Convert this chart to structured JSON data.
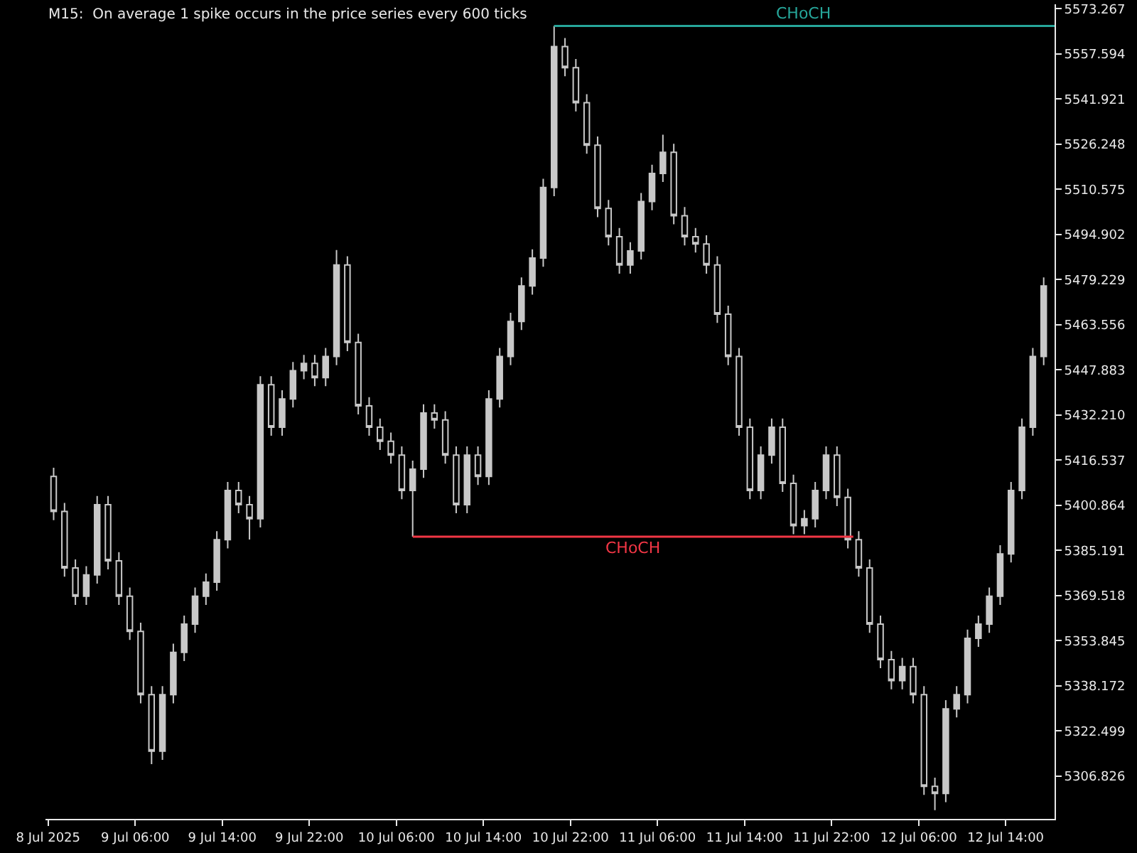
{
  "chart_data": {
    "type": "candlestick",
    "title": "M15:  On average 1 spike occurs in the price series every 600 ticks",
    "color": "#c8c8c8",
    "x": [
      "2025-07-08T22:30",
      "2025-07-08T23:30",
      "2025-07-09T00:30",
      "2025-07-09T01:30",
      "2025-07-09T02:30",
      "2025-07-09T03:30",
      "2025-07-09T04:30",
      "2025-07-09T05:30",
      "2025-07-09T06:30",
      "2025-07-09T07:30",
      "2025-07-09T08:30",
      "2025-07-09T09:30",
      "2025-07-09T10:30",
      "2025-07-09T11:30",
      "2025-07-09T12:30",
      "2025-07-09T13:30",
      "2025-07-09T14:30",
      "2025-07-09T15:30",
      "2025-07-09T16:30",
      "2025-07-09T17:30",
      "2025-07-09T18:30",
      "2025-07-09T19:30",
      "2025-07-09T20:30",
      "2025-07-09T21:30",
      "2025-07-09T22:30",
      "2025-07-09T23:30",
      "2025-07-10T00:30",
      "2025-07-10T01:30",
      "2025-07-10T02:30",
      "2025-07-10T03:30",
      "2025-07-10T04:30",
      "2025-07-10T05:30",
      "2025-07-10T06:30",
      "2025-07-10T07:30",
      "2025-07-10T08:30",
      "2025-07-10T09:30",
      "2025-07-10T10:30",
      "2025-07-10T11:30",
      "2025-07-10T12:30",
      "2025-07-10T13:30",
      "2025-07-10T14:30",
      "2025-07-10T15:30",
      "2025-07-10T16:30",
      "2025-07-10T17:30",
      "2025-07-10T18:30",
      "2025-07-10T19:30",
      "2025-07-10T20:30",
      "2025-07-10T21:30",
      "2025-07-10T22:30",
      "2025-07-10T23:30",
      "2025-07-11T00:30",
      "2025-07-11T01:30",
      "2025-07-11T02:30",
      "2025-07-11T03:30",
      "2025-07-11T04:30",
      "2025-07-11T05:30",
      "2025-07-11T06:30",
      "2025-07-11T07:30",
      "2025-07-11T08:30",
      "2025-07-11T09:30",
      "2025-07-11T10:30",
      "2025-07-11T11:30",
      "2025-07-11T12:30",
      "2025-07-11T13:30",
      "2025-07-11T14:30",
      "2025-07-11T15:30",
      "2025-07-11T16:30",
      "2025-07-11T17:30",
      "2025-07-11T18:30",
      "2025-07-11T19:30",
      "2025-07-11T20:30",
      "2025-07-11T21:30",
      "2025-07-11T22:30",
      "2025-07-11T23:30",
      "2025-07-12T00:30",
      "2025-07-12T01:30",
      "2025-07-12T02:30",
      "2025-07-12T03:30",
      "2025-07-12T04:30",
      "2025-07-12T05:30",
      "2025-07-12T06:30",
      "2025-07-12T07:30",
      "2025-07-12T08:30",
      "2025-07-12T09:30",
      "2025-07-12T10:30",
      "2025-07-12T11:30",
      "2025-07-12T12:30",
      "2025-07-12T13:30",
      "2025-07-12T14:30",
      "2025-07-12T15:30",
      "2025-07-12T16:30",
      "2025-07-12T17:30"
    ],
    "ohlc": [
      [
        5410.9,
        5413.9,
        5395.7,
        5398.7
      ],
      [
        5398.7,
        5401.7,
        5376.1,
        5379.1
      ],
      [
        5379.1,
        5382.1,
        5366.3,
        5369.3
      ],
      [
        5369.3,
        5379.7,
        5366.3,
        5376.7
      ],
      [
        5376.7,
        5404.1,
        5373.7,
        5401.1
      ],
      [
        5401.1,
        5404.1,
        5378.6,
        5381.6
      ],
      [
        5381.6,
        5384.6,
        5366.3,
        5369.3
      ],
      [
        5369.3,
        5372.3,
        5354.1,
        5357.1
      ],
      [
        5357.1,
        5360.1,
        5332.1,
        5335.1
      ],
      [
        5335.1,
        5338.1,
        5311.0,
        5315.5
      ],
      [
        5315.5,
        5338.1,
        5312.5,
        5335.1
      ],
      [
        5335.1,
        5352.8,
        5332.1,
        5349.8
      ],
      [
        5349.8,
        5362.6,
        5346.8,
        5359.6
      ],
      [
        5359.6,
        5372.3,
        5356.6,
        5369.3
      ],
      [
        5369.3,
        5377.2,
        5366.3,
        5374.2
      ],
      [
        5374.2,
        5391.9,
        5371.2,
        5388.9
      ],
      [
        5388.9,
        5409.0,
        5385.9,
        5406.0
      ],
      [
        5406.0,
        5409.0,
        5398.1,
        5401.1
      ],
      [
        5401.1,
        5404.1,
        5389.0,
        5396.2
      ],
      [
        5396.2,
        5445.7,
        5393.2,
        5442.7
      ],
      [
        5442.7,
        5445.7,
        5425.0,
        5428.0
      ],
      [
        5428.0,
        5440.8,
        5425.0,
        5437.8
      ],
      [
        5437.8,
        5450.6,
        5434.8,
        5447.6
      ],
      [
        5447.6,
        5453.1,
        5444.6,
        5450.1
      ],
      [
        5450.1,
        5453.1,
        5442.2,
        5445.2
      ],
      [
        5445.2,
        5455.5,
        5442.2,
        5452.5
      ],
      [
        5452.5,
        5489.5,
        5449.5,
        5484.3
      ],
      [
        5484.3,
        5487.3,
        5454.4,
        5457.4
      ],
      [
        5457.4,
        5460.4,
        5432.4,
        5435.4
      ],
      [
        5435.4,
        5438.4,
        5425.0,
        5428.0
      ],
      [
        5428.0,
        5431.0,
        5420.1,
        5423.1
      ],
      [
        5423.1,
        5426.1,
        5415.3,
        5418.3
      ],
      [
        5418.3,
        5421.3,
        5403.0,
        5406.0
      ],
      [
        5406.0,
        5416.4,
        5390.0,
        5413.4
      ],
      [
        5413.4,
        5435.9,
        5410.4,
        5432.9
      ],
      [
        5432.9,
        5435.9,
        5427.5,
        5430.5
      ],
      [
        5430.5,
        5433.5,
        5415.3,
        5418.3
      ],
      [
        5418.3,
        5421.3,
        5398.1,
        5401.1
      ],
      [
        5401.1,
        5421.3,
        5398.1,
        5418.3
      ],
      [
        5418.3,
        5421.3,
        5407.9,
        5410.9
      ],
      [
        5410.9,
        5440.8,
        5407.9,
        5437.8
      ],
      [
        5437.8,
        5455.5,
        5434.8,
        5452.5
      ],
      [
        5452.5,
        5467.7,
        5449.5,
        5464.7
      ],
      [
        5464.7,
        5480.0,
        5461.7,
        5477.0
      ],
      [
        5477.0,
        5489.7,
        5474.0,
        5486.7
      ],
      [
        5486.7,
        5514.2,
        5483.7,
        5511.2
      ],
      [
        5511.2,
        5567.3,
        5508.2,
        5560.1
      ],
      [
        5560.1,
        5563.1,
        5549.8,
        5552.8
      ],
      [
        5552.8,
        5555.8,
        5537.6,
        5540.6
      ],
      [
        5540.6,
        5543.6,
        5522.9,
        5525.9
      ],
      [
        5525.9,
        5528.9,
        5500.9,
        5503.9
      ],
      [
        5503.9,
        5506.9,
        5491.1,
        5494.1
      ],
      [
        5494.1,
        5497.1,
        5481.3,
        5484.3
      ],
      [
        5484.3,
        5492.2,
        5481.3,
        5489.2
      ],
      [
        5489.2,
        5509.3,
        5486.2,
        5506.3
      ],
      [
        5506.3,
        5519.1,
        5503.3,
        5516.1
      ],
      [
        5516.1,
        5529.5,
        5513.1,
        5523.4
      ],
      [
        5523.4,
        5526.4,
        5498.4,
        5501.4
      ],
      [
        5501.4,
        5504.4,
        5491.1,
        5494.1
      ],
      [
        5494.1,
        5497.1,
        5488.6,
        5491.6
      ],
      [
        5491.6,
        5494.6,
        5481.3,
        5484.3
      ],
      [
        5484.3,
        5487.3,
        5464.2,
        5467.2
      ],
      [
        5467.2,
        5470.2,
        5449.5,
        5452.5
      ],
      [
        5452.5,
        5455.5,
        5425.0,
        5428.0
      ],
      [
        5428.0,
        5431.0,
        5403.0,
        5406.0
      ],
      [
        5406.0,
        5421.3,
        5403.0,
        5418.3
      ],
      [
        5418.3,
        5431.0,
        5415.3,
        5428.0
      ],
      [
        5428.0,
        5431.0,
        5405.5,
        5408.5
      ],
      [
        5408.5,
        5411.5,
        5390.8,
        5393.8
      ],
      [
        5393.8,
        5399.2,
        5390.8,
        5396.2
      ],
      [
        5396.2,
        5409.0,
        5393.2,
        5406.0
      ],
      [
        5406.0,
        5421.3,
        5403.0,
        5418.3
      ],
      [
        5418.3,
        5421.3,
        5400.6,
        5403.6
      ],
      [
        5403.6,
        5406.6,
        5385.9,
        5388.9
      ],
      [
        5388.9,
        5391.9,
        5376.1,
        5379.1
      ],
      [
        5379.1,
        5382.1,
        5356.6,
        5359.6
      ],
      [
        5359.6,
        5362.6,
        5344.3,
        5347.3
      ],
      [
        5347.3,
        5350.3,
        5337.0,
        5340.0
      ],
      [
        5340.0,
        5347.9,
        5337.0,
        5344.9
      ],
      [
        5344.9,
        5347.9,
        5332.1,
        5335.1
      ],
      [
        5335.1,
        5338.1,
        5300.3,
        5303.3
      ],
      [
        5303.3,
        5306.3,
        5295.0,
        5300.8
      ],
      [
        5300.8,
        5333.2,
        5297.8,
        5330.2
      ],
      [
        5330.2,
        5338.1,
        5327.2,
        5335.1
      ],
      [
        5335.1,
        5357.7,
        5332.1,
        5354.7
      ],
      [
        5354.7,
        5362.6,
        5351.7,
        5359.6
      ],
      [
        5359.6,
        5372.3,
        5356.6,
        5369.3
      ],
      [
        5369.3,
        5387.0,
        5366.3,
        5384.0
      ],
      [
        5384.0,
        5409.0,
        5381.0,
        5406.0
      ],
      [
        5406.0,
        5431.0,
        5403.0,
        5428.0
      ],
      [
        5428.0,
        5455.5,
        5425.0,
        5452.5
      ],
      [
        5452.5,
        5480.0,
        5449.5,
        5477.0
      ]
    ],
    "series": [
      {
        "name": "CHoCH",
        "type": "line",
        "color": "#26a69a",
        "x": [
          "2025-07-10T20:30",
          "2025-07-12T18:30"
        ],
        "values": [
          5567.3,
          5567.3
        ]
      },
      {
        "name": "CHoCH",
        "type": "line",
        "color": "#f23645",
        "x": [
          "2025-07-10T07:30",
          "2025-07-12T00:00"
        ],
        "values": [
          5390.0,
          5390.0
        ]
      }
    ],
    "xlim": [
      "2025-07-08T21:45",
      "2025-07-12T18:30"
    ],
    "xticks": [
      {
        "value": "2025-07-08T22:00",
        "label": "8 Jul 2025"
      },
      {
        "value": "2025-07-09T06:00",
        "label": "9 Jul 06:00"
      },
      {
        "value": "2025-07-09T14:00",
        "label": "9 Jul 14:00"
      },
      {
        "value": "2025-07-09T22:00",
        "label": "9 Jul 22:00"
      },
      {
        "value": "2025-07-10T06:00",
        "label": "10 Jul 06:00"
      },
      {
        "value": "2025-07-10T14:00",
        "label": "10 Jul 14:00"
      },
      {
        "value": "2025-07-10T22:00",
        "label": "10 Jul 22:00"
      },
      {
        "value": "2025-07-11T06:00",
        "label": "11 Jul 06:00"
      },
      {
        "value": "2025-07-11T14:00",
        "label": "11 Jul 14:00"
      },
      {
        "value": "2025-07-11T22:00",
        "label": "11 Jul 22:00"
      },
      {
        "value": "2025-07-12T06:00",
        "label": "12 Jul 06:00"
      },
      {
        "value": "2025-07-12T14:00",
        "label": "12 Jul 14:00"
      }
    ],
    "ylim": [
      5292.0,
      5574.8
    ],
    "yticks": [
      5306.826,
      5322.499,
      5338.172,
      5353.845,
      5369.518,
      5385.191,
      5400.864,
      5416.537,
      {
        "value": 5432.21,
        "label": "5432.210"
      },
      5447.883,
      5463.556,
      5479.229,
      5494.902,
      5510.575,
      5526.248,
      5541.921,
      5557.594,
      5573.267
    ],
    "grid": false,
    "legend": false
  }
}
